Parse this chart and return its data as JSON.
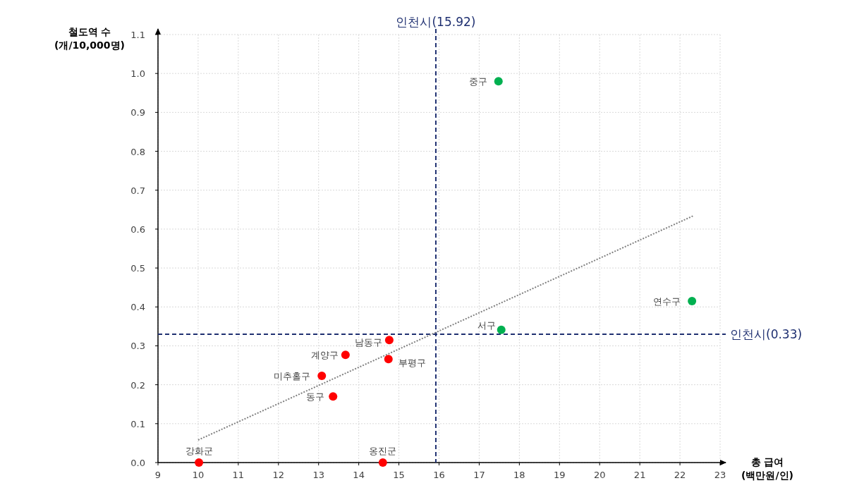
{
  "chart_data": {
    "type": "scatter",
    "xlabel": "총 급여\n(백만원/인)",
    "ylabel": "철도역 수\n(개/10,000명)",
    "xlim": [
      9,
      23
    ],
    "xticks": [
      9,
      10,
      11,
      12,
      13,
      14,
      15,
      16,
      17,
      18,
      19,
      20,
      21,
      22,
      23
    ],
    "ylim": [
      0,
      1.1
    ],
    "yticks": [
      {
        "value": 0,
        "label": "0.0"
      },
      0.1,
      0.2,
      0.3,
      0.4,
      0.5,
      0.6,
      0.7,
      0.8,
      0.9,
      {
        "value": 1,
        "label": "1.0"
      },
      1.1
    ],
    "grid": true,
    "marker": "circle",
    "series": [
      {
        "color": "#00b050",
        "x": [
          17.48,
          22.3,
          17.55
        ],
        "values": [
          0.98,
          0.415,
          0.341
        ]
      },
      {
        "color": "#ff0000",
        "x": [
          14.76,
          13.67,
          14.74,
          13.08,
          13.36,
          10.02,
          14.6
        ],
        "values": [
          0.315,
          0.277,
          0.266,
          0.223,
          0.17,
          0,
          0
        ]
      },
      {
        "type": "line",
        "color": "#808080",
        "line_style": "dotted",
        "marker": "none",
        "x": [
          10.0,
          22.33
        ],
        "values": [
          0.058,
          0.634
        ]
      }
    ],
    "ref_lines": [
      {
        "axis": "x",
        "value": 15.92,
        "label": "인천시(15.92)",
        "color": "#1f3071",
        "line_style": "dashed"
      },
      {
        "axis": "y",
        "value": 0.33,
        "label": "인천시(0.33)",
        "color": "#1f3071",
        "line_style": "dashed"
      }
    ],
    "annotations": [
      {
        "text": "중구",
        "x": 17.48,
        "y": 0.98
      },
      {
        "text": "연수구",
        "x": 22.3,
        "y": 0.415
      },
      {
        "text": "서구",
        "x": 17.55,
        "y": 0.341
      },
      {
        "text": "남동구",
        "x": 14.76,
        "y": 0.315
      },
      {
        "text": "계양구",
        "x": 13.67,
        "y": 0.277
      },
      {
        "text": "부평구",
        "x": 14.74,
        "y": 0.266
      },
      {
        "text": "미추홀구",
        "x": 13.08,
        "y": 0.223
      },
      {
        "text": "동구",
        "x": 13.36,
        "y": 0.17
      },
      {
        "text": "강화군",
        "x": 10.02,
        "y": 0
      },
      {
        "text": "옹진군",
        "x": 14.6,
        "y": 0
      }
    ]
  }
}
